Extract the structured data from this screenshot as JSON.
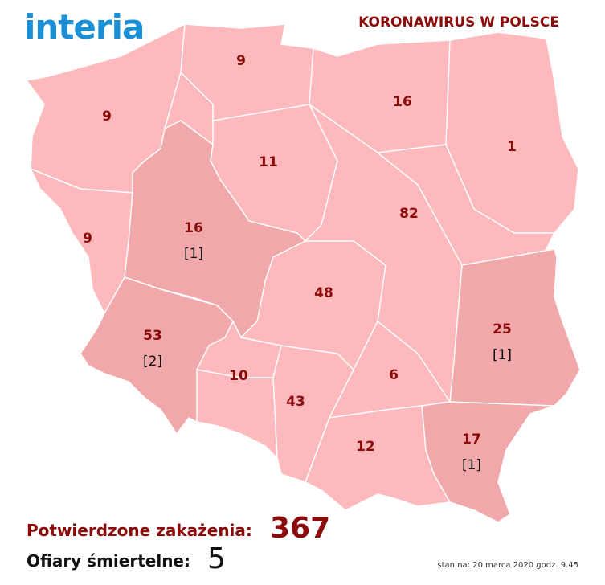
{
  "header": {
    "logo": "interia",
    "title": "KORONAWIRUS W POLSCE"
  },
  "regions": [
    {
      "cases": 9
    },
    {
      "cases": 16
    },
    {
      "cases": 9
    },
    {
      "cases": 1
    },
    {
      "cases": 11
    },
    {
      "cases": 82
    },
    {
      "cases": 16,
      "deaths": "[1]"
    },
    {
      "cases": 9
    },
    {
      "cases": 48
    },
    {
      "cases": 25,
      "deaths": "[1]"
    },
    {
      "cases": 53,
      "deaths": "[2]"
    },
    {
      "cases": 10
    },
    {
      "cases": 6
    },
    {
      "cases": 43
    },
    {
      "cases": 12
    },
    {
      "cases": 17,
      "deaths": "[1]"
    }
  ],
  "summary": {
    "confirmed_label": "Potwierdzone zakażenia:",
    "confirmed": 367,
    "deaths_label": "Ofiary śmiertelne:",
    "deaths": 5
  },
  "footnote": "stan na: 20 marca 2020 godz. 9.45"
}
